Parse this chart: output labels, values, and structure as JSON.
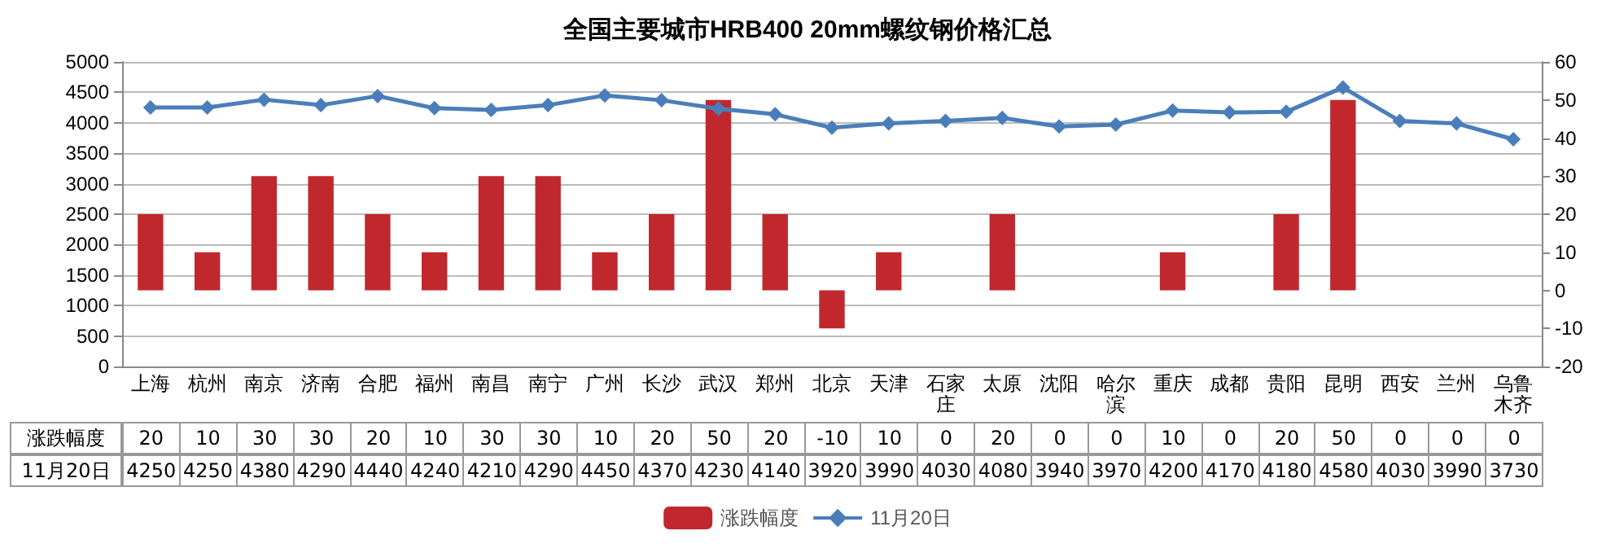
{
  "chart_data": {
    "type": "bar",
    "title": "全国主要城市HRB400 20mm螺纹钢价格汇总",
    "categories": [
      "上海",
      "杭州",
      "南京",
      "济南",
      "合肥",
      "福州",
      "南昌",
      "南宁",
      "广州",
      "长沙",
      "武汉",
      "郑州",
      "北京",
      "天津",
      "石家庄",
      "太原",
      "沈阳",
      "哈尔滨",
      "重庆",
      "成都",
      "贵阳",
      "昆明",
      "西安",
      "兰州",
      "乌鲁木齐"
    ],
    "series": [
      {
        "name": "涨跌幅度",
        "axis": "y2",
        "color": "#c0282d",
        "values": [
          20,
          10,
          30,
          30,
          20,
          10,
          30,
          30,
          10,
          20,
          50,
          20,
          -10,
          10,
          0,
          20,
          0,
          0,
          10,
          0,
          20,
          50,
          0,
          0,
          0
        ]
      },
      {
        "name": "11月20日",
        "type": "line",
        "color": "#4a7ebb",
        "values": [
          4250,
          4250,
          4380,
          4290,
          4440,
          4240,
          4210,
          4290,
          4450,
          4370,
          4230,
          4140,
          3920,
          3990,
          4030,
          4080,
          3940,
          3970,
          4200,
          4170,
          4180,
          4580,
          4030,
          3990,
          3730
        ]
      }
    ],
    "ylim": [
      0,
      5000
    ],
    "yticks": [
      0,
      500,
      1000,
      1500,
      2000,
      2500,
      3000,
      3500,
      4000,
      4500,
      5000
    ],
    "y2lim": [
      -20,
      60
    ],
    "y2ticks": [
      -20,
      -10,
      0,
      10,
      20,
      30,
      40,
      50,
      60
    ],
    "grid": "y",
    "legend": "bottom",
    "marker": "diamond",
    "data_labels": true
  }
}
